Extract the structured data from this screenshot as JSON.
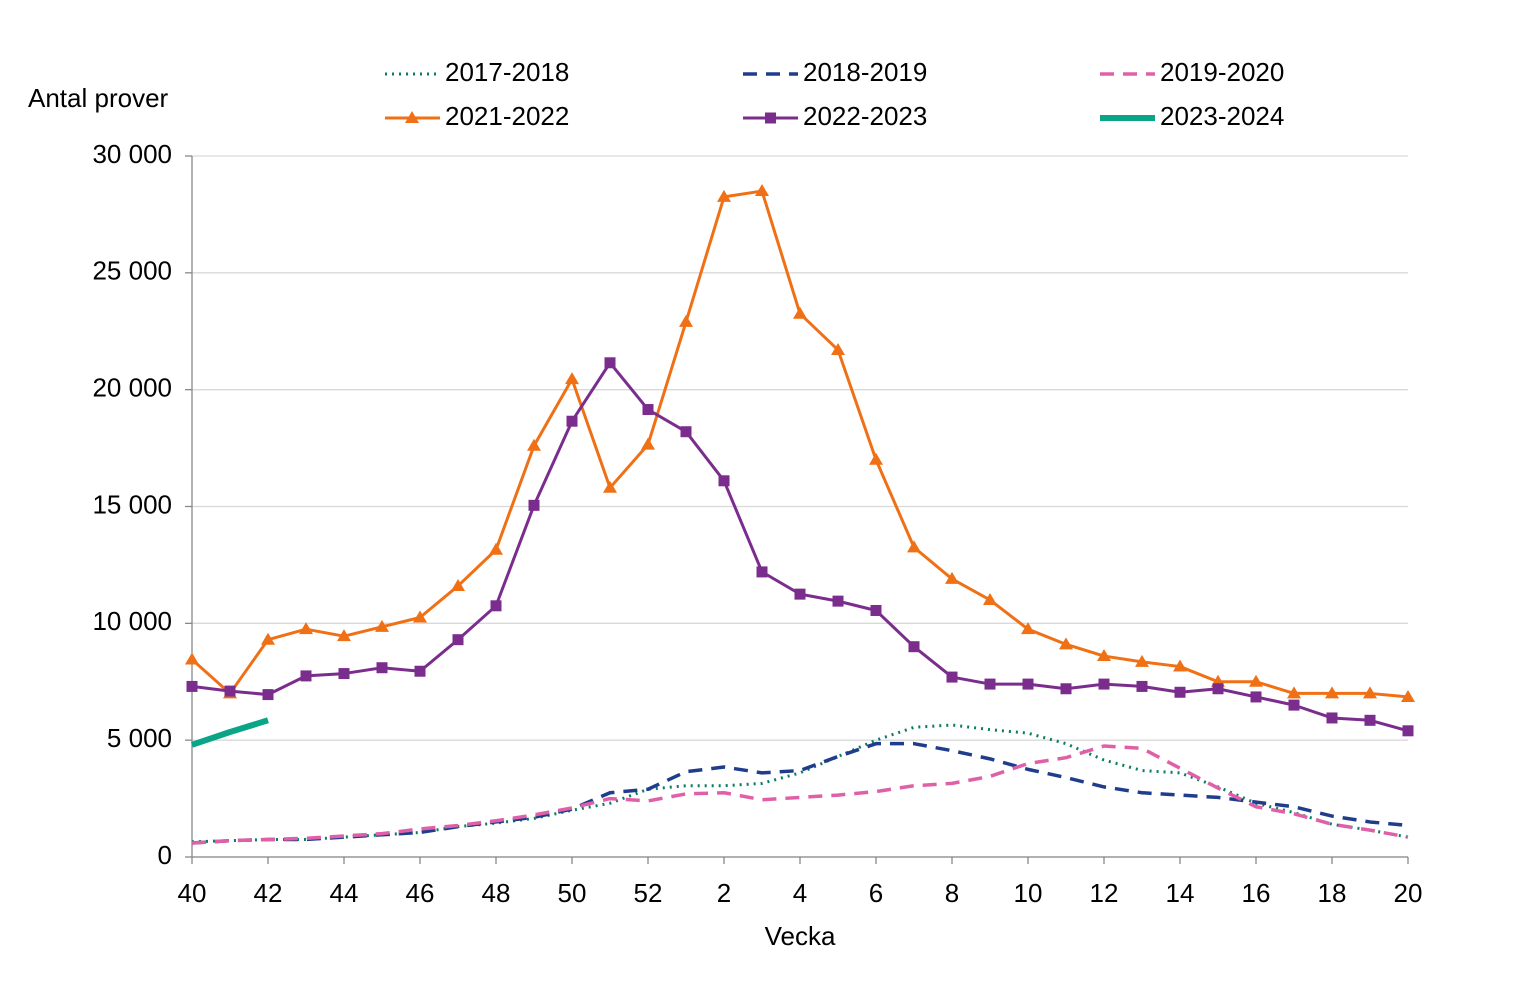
{
  "chart_data": {
    "type": "line",
    "y_label": "Antal prover",
    "x_label": "Vecka",
    "categories": [
      "40",
      null,
      "42",
      null,
      "44",
      null,
      "46",
      null,
      "48",
      null,
      "50",
      null,
      "52",
      null,
      "2",
      null,
      "4",
      null,
      "6",
      null,
      "8",
      null,
      "10",
      null,
      "12",
      null,
      "14",
      null,
      "16",
      null,
      "18",
      null,
      "20"
    ],
    "ylim": [
      0,
      30000
    ],
    "yticks": [
      0,
      {
        "value": 5000,
        "label": "5 000"
      },
      {
        "value": 10000,
        "label": "10 000"
      },
      {
        "value": 15000,
        "label": "15 000"
      },
      {
        "value": 20000,
        "label": "20 000"
      },
      {
        "value": 25000,
        "label": "25 000"
      },
      {
        "value": 30000,
        "label": "30 000"
      }
    ],
    "grid": true,
    "series": [
      {
        "name": "2017-2018",
        "color": "#0c7d62",
        "dash": "dotted",
        "marker": null,
        "values": [
          650,
          700,
          750,
          750,
          850,
          950,
          1050,
          1300,
          1450,
          1650,
          2000,
          2300,
          2900,
          3050,
          3050,
          3150,
          3600,
          4300,
          5000,
          5550,
          5650,
          5450,
          5300,
          4850,
          4150,
          3700,
          3600,
          3000,
          2300,
          1900,
          1400,
          1150,
          850
        ]
      },
      {
        "name": "2018-2019",
        "color": "#1f3d8c",
        "dash": "dashed",
        "marker": null,
        "values": [
          600,
          700,
          750,
          750,
          850,
          950,
          1050,
          1300,
          1500,
          1700,
          2050,
          2750,
          2900,
          3650,
          3850,
          3600,
          3700,
          4300,
          4850,
          4850,
          4550,
          4200,
          3750,
          3400,
          3000,
          2750,
          2650,
          2550,
          2350,
          2150,
          1750,
          1500,
          1350
        ]
      },
      {
        "name": "2019-2020",
        "color": "#e060a8",
        "dash": "dashed",
        "marker": null,
        "values": [
          600,
          700,
          750,
          800,
          900,
          1000,
          1200,
          1350,
          1550,
          1800,
          2100,
          2500,
          2400,
          2700,
          2750,
          2450,
          2550,
          2650,
          2800,
          3050,
          3150,
          3450,
          4000,
          4250,
          4750,
          4650,
          3800,
          2950,
          2150,
          1850,
          1400,
          1150,
          850
        ]
      },
      {
        "name": "2021-2022",
        "color": "#f07015",
        "dash": "solid",
        "marker": "triangle",
        "values": [
          8450,
          7000,
          9300,
          9750,
          9450,
          9850,
          10250,
          11600,
          13150,
          17600,
          20450,
          15800,
          17650,
          22900,
          28250,
          28500,
          23250,
          21700,
          17000,
          13250,
          11900,
          11000,
          9750,
          9100,
          8600,
          8350,
          8150,
          7500,
          7500,
          7000,
          7000,
          7000,
          6850
        ]
      },
      {
        "name": "2022-2023",
        "color": "#7b2d8e",
        "dash": "solid",
        "marker": "square",
        "values": [
          7300,
          7100,
          6950,
          7750,
          7850,
          8100,
          7950,
          9300,
          10750,
          15050,
          18650,
          21150,
          19150,
          18200,
          16100,
          12200,
          11250,
          10950,
          10550,
          9000,
          7700,
          7400,
          7400,
          7200,
          7400,
          7300,
          7050,
          7200,
          6850,
          6500,
          5950,
          5850,
          5400
        ]
      },
      {
        "name": "2023-2024",
        "color": "#0aa587",
        "dash": "thick",
        "marker": null,
        "values": [
          4800,
          5350,
          5850,
          null,
          null,
          null,
          null,
          null,
          null,
          null,
          null,
          null,
          null,
          null,
          null,
          null,
          null,
          null,
          null,
          null,
          null,
          null,
          null,
          null,
          null,
          null,
          null,
          null,
          null,
          null,
          null,
          null,
          null
        ]
      }
    ]
  }
}
